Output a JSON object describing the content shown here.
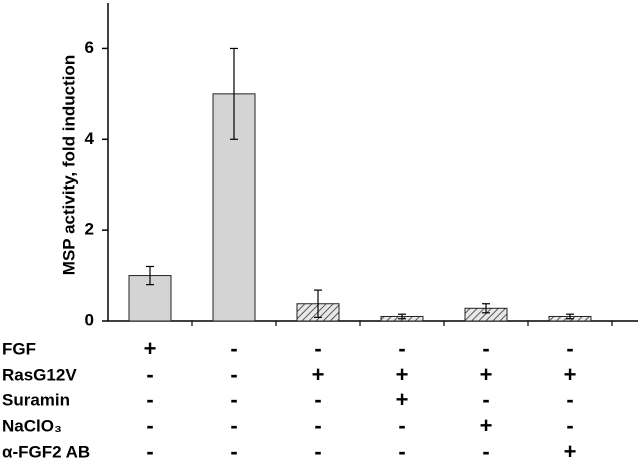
{
  "chart_data": {
    "type": "bar",
    "y_label": "MSP activity, fold induction",
    "values": [
      1.0,
      5.0,
      0.38,
      0.1,
      0.28,
      0.1
    ],
    "errors": [
      0.2,
      1.0,
      0.3,
      0.05,
      0.1,
      0.05
    ],
    "bar_styles": [
      "solid",
      "solid",
      "hatched",
      "hatched",
      "hatched",
      "hatched"
    ],
    "color": "#d4d4d4",
    "ylim": [
      0,
      7
    ],
    "yticks": [
      0,
      2,
      4,
      6
    ],
    "grid": false,
    "conditions": [
      {
        "label": "FGF",
        "signs": [
          "+",
          "-",
          "-",
          "-",
          "-",
          "-"
        ]
      },
      {
        "label": "RasG12V",
        "signs": [
          "-",
          "-",
          "+",
          "+",
          "+",
          "+"
        ]
      },
      {
        "label": "Suramin",
        "signs": [
          "-",
          "-",
          "-",
          "+",
          "-",
          "-"
        ]
      },
      {
        "label": "NaClO₃",
        "signs": [
          "-",
          "-",
          "-",
          "-",
          "+",
          "-"
        ]
      },
      {
        "label": "α-FGF2 AB",
        "signs": [
          "-",
          "-",
          "-",
          "-",
          "-",
          "+"
        ]
      }
    ]
  }
}
